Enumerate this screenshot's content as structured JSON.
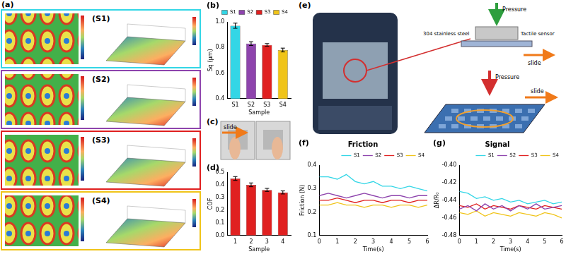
{
  "chart_data": [
    {
      "panel": "(b)",
      "type": "bar",
      "categories": [
        "S1",
        "S2",
        "S3",
        "S4"
      ],
      "values": [
        0.97,
        0.83,
        0.82,
        0.78
      ],
      "errors": [
        0.02,
        0.015,
        0.01,
        0.015
      ],
      "colors": [
        "#33d6e6",
        "#8e44ad",
        "#e02020",
        "#f0c419"
      ],
      "x_label": "Sample",
      "y_label": "Sq (μm)",
      "ylim": [
        0.4,
        1.0
      ],
      "yticks": [
        0.4,
        0.6,
        0.8,
        {
          "value": 1,
          "label": "1.0"
        }
      ],
      "legend": "upper right"
    },
    {
      "panel": "(d)",
      "type": "bar",
      "categories": [
        "1",
        "2",
        "3",
        "4"
      ],
      "values": [
        0.45,
        0.4,
        0.36,
        0.34
      ],
      "errors": [
        0.015,
        0.015,
        0.012,
        0.012
      ],
      "color": "#e02020",
      "x_label": "Sample",
      "y_label": "COF",
      "ylim": [
        0,
        0.5
      ],
      "yticks": [
        {
          "value": 0,
          "label": "0.0"
        },
        0.1,
        0.2,
        0.3,
        0.4,
        0.5
      ]
    },
    {
      "panel": "(f)",
      "type": "line",
      "title": "Friction",
      "x": [
        0,
        0.5,
        1,
        1.5,
        2,
        2.5,
        3,
        3.5,
        4,
        4.5,
        5,
        5.5,
        6
      ],
      "series": [
        {
          "name": "S1",
          "color": "#33d6e6",
          "values": [
            0.35,
            0.35,
            0.34,
            0.36,
            0.33,
            0.32,
            0.33,
            0.31,
            0.31,
            0.3,
            0.31,
            0.3,
            0.29
          ]
        },
        {
          "name": "S2",
          "color": "#8e44ad",
          "values": [
            0.27,
            0.28,
            0.27,
            0.26,
            0.27,
            0.28,
            0.27,
            0.26,
            0.27,
            0.27,
            0.26,
            0.27,
            0.27
          ]
        },
        {
          "name": "S3",
          "color": "#e02020",
          "values": [
            0.25,
            0.25,
            0.26,
            0.25,
            0.24,
            0.25,
            0.25,
            0.24,
            0.25,
            0.25,
            0.24,
            0.25,
            0.25
          ]
        },
        {
          "name": "S4",
          "color": "#f0c419",
          "values": [
            0.23,
            0.23,
            0.24,
            0.23,
            0.23,
            0.22,
            0.23,
            0.23,
            0.22,
            0.23,
            0.23,
            0.22,
            0.23
          ]
        }
      ],
      "x_label": "Time(s)",
      "y_label": "Friction (N)",
      "xlim": [
        0,
        6
      ],
      "xticks": [
        0,
        1,
        2,
        3,
        4,
        5,
        6
      ],
      "ylim": [
        0.1,
        0.4
      ],
      "yticks": [
        0.1,
        0.2,
        0.3,
        0.4
      ],
      "legend": "upper right"
    },
    {
      "panel": "(g)",
      "type": "line",
      "title": "Signal",
      "x": [
        0,
        0.5,
        1,
        1.5,
        2,
        2.5,
        3,
        3.5,
        4,
        4.5,
        5,
        5.5,
        6
      ],
      "series": [
        {
          "name": "S1",
          "color": "#33d6e6",
          "values": [
            -0.43,
            -0.432,
            -0.438,
            -0.436,
            -0.44,
            -0.438,
            -0.442,
            -0.44,
            -0.444,
            -0.442,
            -0.44,
            -0.444,
            -0.442
          ]
        },
        {
          "name": "S2",
          "color": "#8e44ad",
          "values": [
            -0.45,
            -0.446,
            -0.452,
            -0.444,
            -0.45,
            -0.446,
            -0.452,
            -0.446,
            -0.45,
            -0.444,
            -0.45,
            -0.448,
            -0.446
          ]
        },
        {
          "name": "S3",
          "color": "#e02020",
          "values": [
            -0.446,
            -0.448,
            -0.444,
            -0.45,
            -0.446,
            -0.448,
            -0.45,
            -0.446,
            -0.448,
            -0.45,
            -0.446,
            -0.448,
            -0.45
          ]
        },
        {
          "name": "S4",
          "color": "#f0c419",
          "values": [
            -0.454,
            -0.456,
            -0.452,
            -0.458,
            -0.454,
            -0.456,
            -0.458,
            -0.454,
            -0.456,
            -0.458,
            -0.454,
            -0.456,
            -0.46
          ]
        }
      ],
      "x_label": "Time(s)",
      "y_label": "ΔR/R₀",
      "xlim": [
        0,
        6
      ],
      "xticks": [
        0,
        1,
        2,
        3,
        4,
        5,
        6
      ],
      "ylim": [
        -0.48,
        -0.4
      ],
      "yticks": [
        -0.48,
        -0.46,
        -0.44,
        -0.42,
        {
          "value": -0.4,
          "label": "-0.40"
        }
      ],
      "legend": "upper right"
    }
  ],
  "figure": {
    "a": {
      "panel": "(a)",
      "samples": [
        "(S1)",
        "(S2)",
        "(S3)",
        "(S4)"
      ]
    },
    "c": {
      "panel": "(c)",
      "arrow": "slide"
    },
    "e": {
      "panel": "(e)",
      "top_arrow": "Pressure",
      "steel": "304 stainless steel",
      "sensor": "Tactile sensor",
      "top_slide": "slide",
      "bottom_arrow": "Pressure",
      "bottom_slide": "slide"
    }
  }
}
